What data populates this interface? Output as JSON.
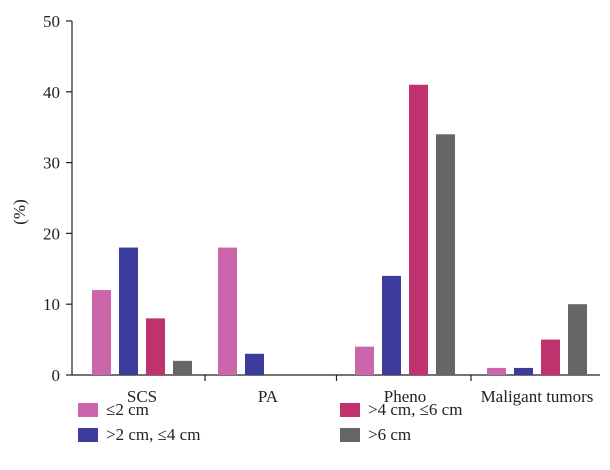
{
  "chart_data": {
    "type": "bar",
    "title": "",
    "xlabel": "",
    "ylabel": "(%)",
    "ylim": [
      0,
      50
    ],
    "yticks": [
      0,
      10,
      20,
      30,
      40,
      50
    ],
    "grid": false,
    "legend_position": "bottom",
    "categories": [
      "SCS",
      "PA",
      "Pheno",
      "Maligant tumors"
    ],
    "series": [
      {
        "name": "≤2 cm",
        "color": "#cc66aa",
        "values": [
          12,
          18,
          4,
          1
        ]
      },
      {
        "name": ">2 cm, ≤4 cm",
        "color": "#3c3c9c",
        "values": [
          18,
          3,
          14,
          1
        ]
      },
      {
        "name": ">4 cm, ≤6 cm",
        "color": "#c0326e",
        "values": [
          8,
          0,
          41,
          5
        ]
      },
      {
        "name": ">6 cm",
        "color": "#666666",
        "values": [
          2,
          0,
          34,
          10
        ]
      }
    ]
  }
}
